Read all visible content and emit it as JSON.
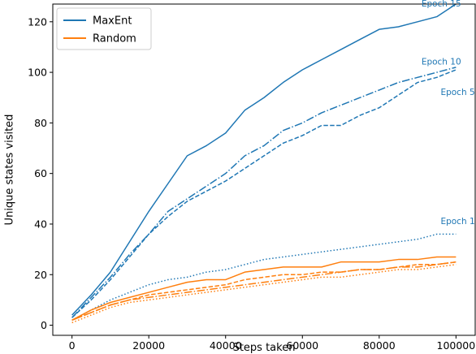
{
  "chart_data": {
    "type": "line",
    "title": "",
    "xlabel": "Steps taken",
    "ylabel": "Unique states visited",
    "xlim": [
      -5000,
      105000
    ],
    "ylim": [
      -4,
      127
    ],
    "xticks": [
      0,
      20000,
      40000,
      60000,
      80000,
      100000
    ],
    "yticks": [
      0,
      20,
      40,
      60,
      80,
      100,
      120
    ],
    "grid": false,
    "legend": {
      "position": "upper-left",
      "entries": [
        {
          "label": "MaxEnt",
          "color": "#1f77b4"
        },
        {
          "label": "Random",
          "color": "#ff7f0e"
        }
      ]
    },
    "colors": {
      "maxent": "#1f77b4",
      "random": "#ff7f0e"
    },
    "annotations": [
      {
        "text": "Epoch 15",
        "x": 91000,
        "y": 126,
        "color": "#1f77b4"
      },
      {
        "text": "Epoch 10",
        "x": 91000,
        "y": 103,
        "color": "#1f77b4"
      },
      {
        "text": "Epoch 5",
        "x": 96000,
        "y": 91,
        "color": "#1f77b4"
      },
      {
        "text": "Epoch 1",
        "x": 96000,
        "y": 40,
        "color": "#1f77b4"
      }
    ],
    "series": [
      {
        "group": "MaxEnt",
        "epoch": "Epoch 15",
        "style": "solid",
        "color": "#1f77b4",
        "x": [
          0,
          5000,
          10000,
          15000,
          20000,
          25000,
          30000,
          35000,
          40000,
          45000,
          50000,
          55000,
          60000,
          65000,
          70000,
          75000,
          80000,
          85000,
          90000,
          95000,
          100000
        ],
        "y": [
          4,
          12,
          21,
          33,
          45,
          56,
          67,
          71,
          76,
          85,
          90,
          96,
          101,
          105,
          109,
          113,
          117,
          118,
          120,
          122,
          127
        ]
      },
      {
        "group": "MaxEnt",
        "epoch": "Epoch 10",
        "style": "dashdot",
        "color": "#1f77b4",
        "x": [
          0,
          5000,
          10000,
          15000,
          20000,
          25000,
          30000,
          35000,
          40000,
          45000,
          50000,
          55000,
          60000,
          65000,
          70000,
          75000,
          80000,
          85000,
          90000,
          95000,
          100000
        ],
        "y": [
          3,
          11,
          19,
          28,
          36,
          45,
          50,
          55,
          60,
          67,
          71,
          77,
          80,
          84,
          87,
          90,
          93,
          96,
          98,
          100,
          102
        ]
      },
      {
        "group": "MaxEnt",
        "epoch": "Epoch 5",
        "style": "dashed",
        "color": "#1f77b4",
        "x": [
          0,
          5000,
          10000,
          15000,
          20000,
          25000,
          30000,
          35000,
          40000,
          45000,
          50000,
          55000,
          60000,
          65000,
          70000,
          75000,
          80000,
          85000,
          90000,
          95000,
          100000
        ],
        "y": [
          3,
          10,
          18,
          27,
          36,
          43,
          49,
          53,
          57,
          62,
          67,
          72,
          75,
          79,
          79,
          83,
          86,
          91,
          96,
          98,
          101
        ]
      },
      {
        "group": "MaxEnt",
        "epoch": "Epoch 1",
        "style": "dotted",
        "color": "#1f77b4",
        "x": [
          0,
          5000,
          10000,
          15000,
          20000,
          25000,
          30000,
          35000,
          40000,
          45000,
          50000,
          55000,
          60000,
          65000,
          70000,
          75000,
          80000,
          85000,
          90000,
          95000,
          100000
        ],
        "y": [
          2,
          6,
          10,
          13,
          16,
          18,
          19,
          21,
          22,
          24,
          26,
          27,
          28,
          29,
          30,
          31,
          32,
          33,
          34,
          36,
          36
        ]
      },
      {
        "group": "Random",
        "epoch": "",
        "style": "solid",
        "color": "#ff7f0e",
        "x": [
          0,
          5000,
          10000,
          15000,
          20000,
          25000,
          30000,
          35000,
          40000,
          45000,
          50000,
          55000,
          60000,
          65000,
          70000,
          75000,
          80000,
          85000,
          90000,
          95000,
          100000
        ],
        "y": [
          2,
          6,
          9,
          11,
          13,
          15,
          17,
          18,
          18,
          21,
          22,
          23,
          23,
          23,
          25,
          25,
          25,
          26,
          26,
          27,
          27
        ]
      },
      {
        "group": "Random",
        "epoch": "",
        "style": "dashed",
        "color": "#ff7f0e",
        "x": [
          0,
          5000,
          10000,
          15000,
          20000,
          25000,
          30000,
          35000,
          40000,
          45000,
          50000,
          55000,
          60000,
          65000,
          70000,
          75000,
          80000,
          85000,
          90000,
          95000,
          100000
        ],
        "y": [
          2,
          5,
          8,
          10,
          12,
          13,
          14,
          15,
          16,
          18,
          19,
          20,
          20,
          21,
          21,
          22,
          22,
          23,
          24,
          24,
          25
        ]
      },
      {
        "group": "Random",
        "epoch": "",
        "style": "dashdot",
        "color": "#ff7f0e",
        "x": [
          0,
          5000,
          10000,
          15000,
          20000,
          25000,
          30000,
          35000,
          40000,
          45000,
          50000,
          55000,
          60000,
          65000,
          70000,
          75000,
          80000,
          85000,
          90000,
          95000,
          100000
        ],
        "y": [
          2,
          5,
          8,
          10,
          11,
          12,
          13,
          14,
          15,
          16,
          17,
          18,
          19,
          20,
          21,
          22,
          22,
          23,
          23,
          24,
          25
        ]
      },
      {
        "group": "Random",
        "epoch": "",
        "style": "dotted",
        "color": "#ff7f0e",
        "x": [
          0,
          5000,
          10000,
          15000,
          20000,
          25000,
          30000,
          35000,
          40000,
          45000,
          50000,
          55000,
          60000,
          65000,
          70000,
          75000,
          80000,
          85000,
          90000,
          95000,
          100000
        ],
        "y": [
          1,
          4,
          7,
          9,
          10,
          11,
          12,
          13,
          14,
          15,
          16,
          17,
          18,
          19,
          19,
          20,
          21,
          22,
          22,
          23,
          24
        ]
      }
    ]
  }
}
